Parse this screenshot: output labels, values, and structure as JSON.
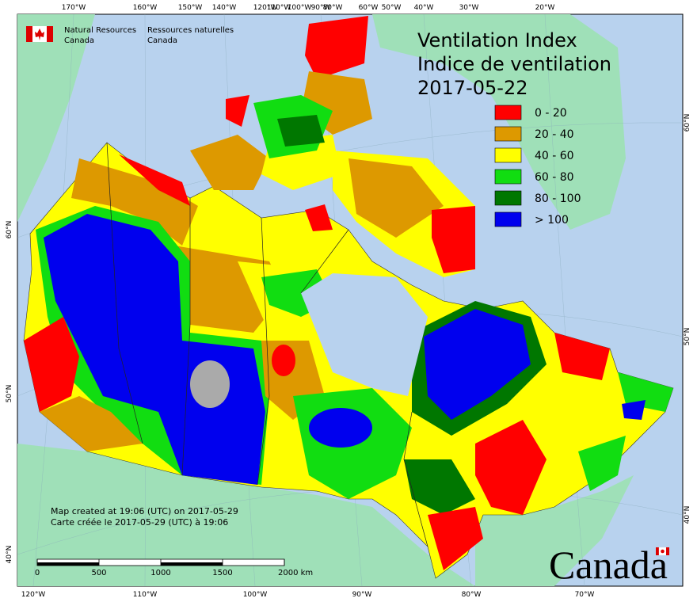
{
  "header": {
    "dept_en": [
      "Natural Resources",
      "Canada"
    ],
    "dept_fr": [
      "Ressources naturelles",
      "Canada"
    ]
  },
  "title": [
    "Ventilation Index",
    "Indice de ventilation",
    "2017-05-22"
  ],
  "legend": [
    {
      "label": "0 - 20",
      "color": "#ff0000"
    },
    {
      "label": "20 - 40",
      "color": "#dd9900"
    },
    {
      "label": "40 - 60",
      "color": "#ffff00"
    },
    {
      "label": "60 - 80",
      "color": "#11dd11"
    },
    {
      "label": "80 - 100",
      "color": "#007700"
    },
    {
      "label": "> 100",
      "color": "#0000ee"
    }
  ],
  "longitude_labels_top": [
    "170°W",
    "160°W",
    "150°W",
    "140°W",
    "120°W",
    "110°W",
    "100°W",
    "90°W",
    "80°W",
    "60°W",
    "50°W",
    "40°W",
    "30°W",
    "20°W"
  ],
  "longitude_labels_bottom": [
    "120°W",
    "110°W",
    "100°W",
    "90°W",
    "80°W",
    "70°W"
  ],
  "latitude_labels_left": [
    "60°N",
    "50°N",
    "40°N"
  ],
  "latitude_labels_right": [
    "60°N",
    "50°N",
    "40°N"
  ],
  "notes": [
    "Map created at 19:06 (UTC) on 2017-05-29",
    "Carte créée le 2017-05-29 (UTC) à 19:06"
  ],
  "scale_bar": {
    "ticks": [
      0,
      500,
      1000,
      1500,
      {
        "value": 2000,
        "label": "2000 km"
      }
    ]
  },
  "wordmark": "Canada"
}
